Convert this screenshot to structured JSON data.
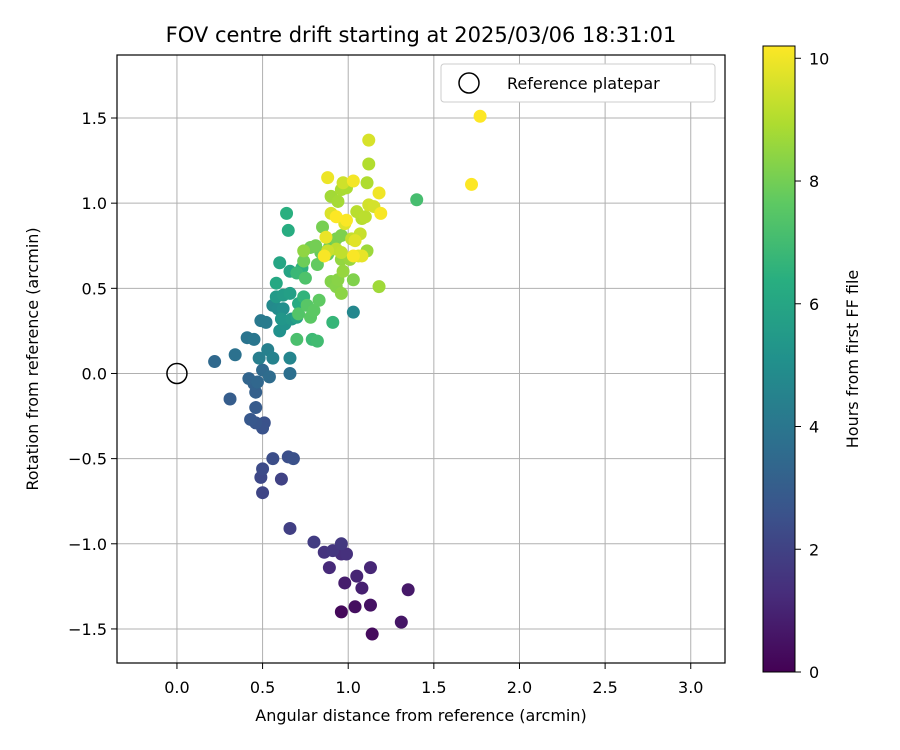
{
  "chart_data": {
    "type": "scatter",
    "title": "FOV centre drift starting at 2025/03/06 18:31:01",
    "xlabel": "Angular distance from reference (arcmin)",
    "ylabel": "Rotation from reference (arcmin)",
    "xlim": [
      -0.35,
      3.2
    ],
    "ylim": [
      -1.7,
      1.87
    ],
    "xticks": [
      "0.0",
      "0.5",
      "1.0",
      "1.5",
      "2.0",
      "2.5",
      "3.0"
    ],
    "yticks": [
      "−1.5",
      "−1.0",
      "−0.5",
      "0.0",
      "0.5",
      "1.0",
      "1.5"
    ],
    "grid": true,
    "legend": {
      "position": "top-right",
      "label": "Reference platepar"
    },
    "reference_point": {
      "x": 0.0,
      "y": 0.0
    },
    "colorbar": {
      "label": "Hours from first FF file",
      "range": [
        0,
        10.2
      ],
      "ticks": [
        "0",
        "2",
        "4",
        "6",
        "8",
        "10"
      ],
      "colormap": "viridis"
    },
    "points": [
      [
        0.96,
        -1.4,
        0.2
      ],
      [
        1.14,
        -1.53,
        0.3
      ],
      [
        1.04,
        -1.37,
        0.4
      ],
      [
        1.13,
        -1.36,
        0.5
      ],
      [
        1.31,
        -1.46,
        0.6
      ],
      [
        1.35,
        -1.27,
        0.7
      ],
      [
        0.98,
        -1.23,
        0.8
      ],
      [
        1.08,
        -1.26,
        0.9
      ],
      [
        1.05,
        -1.19,
        1.0
      ],
      [
        1.13,
        -1.14,
        1.1
      ],
      [
        0.89,
        -1.14,
        1.2
      ],
      [
        0.96,
        -1.06,
        1.3
      ],
      [
        0.99,
        -1.06,
        1.4
      ],
      [
        0.86,
        -1.05,
        1.5
      ],
      [
        0.91,
        -1.04,
        1.6
      ],
      [
        0.96,
        -1.0,
        1.7
      ],
      [
        0.8,
        -0.99,
        1.8
      ],
      [
        0.66,
        -0.91,
        1.9
      ],
      [
        0.61,
        -0.62,
        2.0
      ],
      [
        0.5,
        -0.7,
        2.1
      ],
      [
        0.49,
        -0.61,
        2.2
      ],
      [
        0.5,
        -0.56,
        2.3
      ],
      [
        0.56,
        -0.5,
        2.4
      ],
      [
        0.65,
        -0.49,
        2.45
      ],
      [
        0.68,
        -0.5,
        2.5
      ],
      [
        0.51,
        -0.29,
        2.55
      ],
      [
        0.5,
        -0.32,
        2.6
      ],
      [
        0.46,
        -0.29,
        2.7
      ],
      [
        0.43,
        -0.27,
        2.8
      ],
      [
        0.46,
        -0.2,
        2.9
      ],
      [
        0.31,
        -0.15,
        3.0
      ],
      [
        0.46,
        -0.11,
        3.1
      ],
      [
        0.45,
        -0.06,
        3.2
      ],
      [
        0.42,
        -0.03,
        3.3
      ],
      [
        0.47,
        -0.05,
        3.4
      ],
      [
        0.22,
        0.07,
        3.45
      ],
      [
        0.5,
        0.02,
        3.5
      ],
      [
        0.54,
        -0.02,
        3.6
      ],
      [
        0.66,
        0.0,
        3.7
      ],
      [
        0.34,
        0.11,
        3.8
      ],
      [
        0.41,
        0.21,
        3.9
      ],
      [
        0.45,
        0.2,
        4.0
      ],
      [
        0.49,
        0.31,
        4.1
      ],
      [
        0.52,
        0.3,
        4.2
      ],
      [
        0.48,
        0.09,
        4.3
      ],
      [
        0.53,
        0.14,
        4.4
      ],
      [
        0.56,
        0.09,
        4.5
      ],
      [
        0.66,
        0.09,
        4.6
      ],
      [
        1.03,
        0.36,
        4.7
      ],
      [
        0.56,
        0.4,
        4.8
      ],
      [
        0.59,
        0.38,
        4.9
      ],
      [
        0.62,
        0.38,
        5.0
      ],
      [
        0.6,
        0.25,
        5.1
      ],
      [
        0.63,
        0.29,
        5.2
      ],
      [
        0.61,
        0.32,
        5.3
      ],
      [
        0.67,
        0.32,
        5.4
      ],
      [
        0.58,
        0.45,
        5.5
      ],
      [
        0.62,
        0.46,
        5.6
      ],
      [
        0.66,
        0.47,
        5.7
      ],
      [
        0.7,
        0.33,
        5.8
      ],
      [
        0.66,
        0.6,
        5.9
      ],
      [
        0.6,
        0.65,
        6.0
      ],
      [
        0.58,
        0.53,
        6.1
      ],
      [
        0.71,
        0.41,
        6.2
      ],
      [
        0.65,
        0.84,
        6.3
      ],
      [
        0.64,
        0.94,
        6.4
      ],
      [
        0.73,
        0.62,
        6.5
      ],
      [
        0.74,
        0.45,
        6.6
      ],
      [
        0.91,
        0.3,
        6.7
      ],
      [
        0.7,
        0.59,
        6.8
      ],
      [
        0.79,
        0.2,
        6.9
      ],
      [
        0.82,
        0.19,
        7.0
      ],
      [
        1.4,
        1.02,
        7.1
      ],
      [
        0.7,
        0.2,
        7.2
      ],
      [
        0.75,
        0.56,
        7.3
      ],
      [
        0.71,
        0.35,
        7.4
      ],
      [
        0.76,
        0.4,
        7.5
      ],
      [
        0.78,
        0.33,
        7.55
      ],
      [
        0.8,
        0.37,
        7.6
      ],
      [
        0.83,
        0.43,
        7.65
      ],
      [
        0.82,
        0.64,
        7.7
      ],
      [
        0.84,
        0.71,
        7.75
      ],
      [
        0.88,
        0.7,
        7.8
      ],
      [
        0.89,
        0.74,
        7.85
      ],
      [
        0.74,
        0.66,
        7.9
      ],
      [
        0.78,
        0.74,
        7.95
      ],
      [
        0.81,
        0.75,
        8.0
      ],
      [
        0.85,
        0.86,
        8.05
      ],
      [
        0.93,
        0.79,
        8.1
      ],
      [
        0.96,
        0.81,
        8.15
      ],
      [
        1.03,
        0.55,
        8.2
      ],
      [
        0.9,
        0.54,
        8.25
      ],
      [
        0.93,
        0.51,
        8.3
      ],
      [
        0.94,
        0.55,
        8.35
      ],
      [
        0.96,
        0.47,
        8.4
      ],
      [
        0.74,
        0.72,
        8.45
      ],
      [
        0.96,
        0.67,
        8.5
      ],
      [
        0.97,
        0.6,
        8.55
      ],
      [
        1.01,
        0.67,
        8.6
      ],
      [
        1.11,
        0.72,
        8.65
      ],
      [
        1.18,
        0.51,
        8.7
      ],
      [
        0.9,
        1.04,
        8.75
      ],
      [
        0.94,
        1.01,
        8.8
      ],
      [
        0.96,
        1.08,
        8.85
      ],
      [
        0.99,
        1.09,
        8.9
      ],
      [
        1.11,
        1.12,
        8.95
      ],
      [
        1.12,
        1.23,
        9.0
      ],
      [
        1.08,
        0.91,
        9.05
      ],
      [
        1.05,
        0.95,
        9.1
      ],
      [
        1.1,
        0.92,
        9.15
      ],
      [
        0.93,
        0.73,
        9.2
      ],
      [
        0.96,
        0.71,
        9.25
      ],
      [
        1.02,
        0.79,
        9.3
      ],
      [
        1.07,
        0.82,
        9.35
      ],
      [
        0.88,
        0.72,
        9.4
      ],
      [
        0.97,
        1.12,
        9.45
      ],
      [
        1.12,
        0.99,
        9.5
      ],
      [
        1.15,
        0.98,
        9.55
      ],
      [
        1.12,
        1.37,
        9.6
      ],
      [
        0.9,
        0.94,
        9.65
      ],
      [
        0.98,
        0.88,
        9.7
      ],
      [
        1.04,
        0.78,
        9.75
      ],
      [
        1.06,
        0.69,
        9.8
      ],
      [
        1.08,
        0.69,
        9.85
      ],
      [
        0.87,
        0.8,
        9.9
      ],
      [
        0.88,
        1.15,
        9.95
      ],
      [
        1.18,
        1.06,
        10.0
      ],
      [
        1.03,
        1.13,
        10.05
      ],
      [
        1.19,
        0.94,
        10.1
      ],
      [
        0.86,
        0.69,
        10.12
      ],
      [
        1.03,
        0.69,
        10.14
      ],
      [
        0.99,
        0.9,
        10.16
      ],
      [
        0.93,
        0.92,
        10.18
      ],
      [
        1.72,
        1.11,
        10.19
      ],
      [
        1.77,
        1.51,
        10.2
      ]
    ]
  }
}
